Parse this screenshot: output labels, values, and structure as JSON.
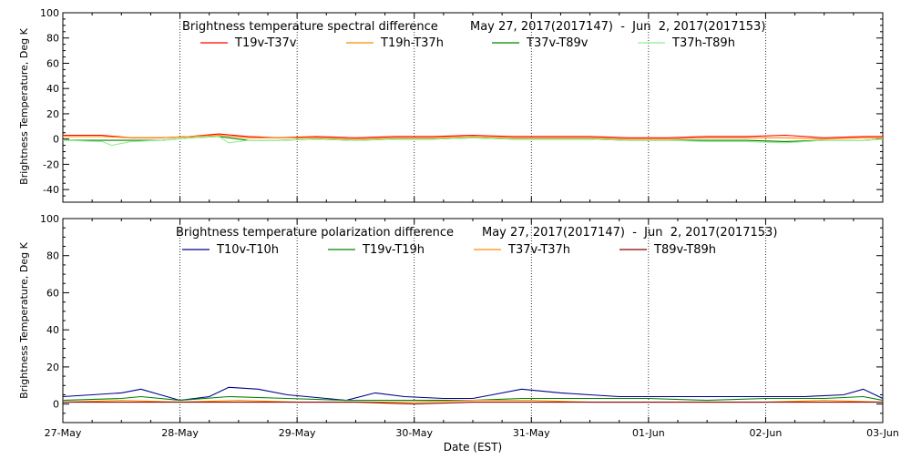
{
  "chart_data": [
    {
      "type": "line",
      "title": "Brightness temperature spectral difference",
      "subtitle": "May 27, 2017(2017147)  -  Jun  2, 2017(2017153)",
      "ylabel": "Brightness Temperature, Deg K",
      "xlabel": "",
      "ylim": [
        -50,
        100
      ],
      "yticks": [
        -40,
        -20,
        0,
        20,
        40,
        60,
        80,
        100
      ],
      "xlim": [
        "2017-05-27",
        "2017-06-03"
      ],
      "grid": "vertical dotted at day boundaries",
      "legend_position": "top",
      "series": [
        {
          "name": "T19v-T37v",
          "color": "#ff0000",
          "x": [
            "2017-05-27T00",
            "2017-05-27T08",
            "2017-05-27T14",
            "2017-05-27T20",
            "2017-05-28T02",
            "2017-05-28T08",
            "2017-05-28T14",
            "2017-05-28T20",
            "2017-05-29T04",
            "2017-05-29T12",
            "2017-05-29T20",
            "2017-05-30T04",
            "2017-05-30T12",
            "2017-05-30T20",
            "2017-05-31T04",
            "2017-05-31T12",
            "2017-05-31T20",
            "2017-06-01T04",
            "2017-06-01T12",
            "2017-06-01T20",
            "2017-06-02T04",
            "2017-06-02T12",
            "2017-06-02T20",
            "2017-06-03T00"
          ],
          "y": [
            3,
            3,
            1,
            1,
            2,
            4,
            2,
            1,
            2,
            1,
            2,
            2,
            3,
            2,
            2,
            2,
            1,
            1,
            2,
            2,
            3,
            1,
            2,
            2
          ]
        },
        {
          "name": "T19h-T37h",
          "color": "#ff8c00",
          "x": [
            "2017-05-27T00",
            "2017-05-27T08",
            "2017-05-27T14",
            "2017-05-27T20",
            "2017-05-28T02",
            "2017-05-28T08",
            "2017-05-28T14",
            "2017-05-28T20",
            "2017-05-29T04",
            "2017-05-29T12",
            "2017-05-29T20",
            "2017-05-30T04",
            "2017-05-30T12",
            "2017-05-30T20",
            "2017-05-31T04",
            "2017-05-31T12",
            "2017-05-31T20",
            "2017-06-01T04",
            "2017-06-01T12",
            "2017-06-01T20",
            "2017-06-02T04",
            "2017-06-02T12",
            "2017-06-02T20",
            "2017-06-03T00"
          ],
          "y": [
            2,
            2,
            1,
            1,
            2,
            3,
            1,
            1,
            1,
            0,
            1,
            1,
            2,
            1,
            1,
            1,
            0,
            0,
            1,
            1,
            1,
            0,
            1,
            1
          ]
        },
        {
          "name": "T37v-T89v",
          "color": "#008000",
          "x": [
            "2017-05-27T00",
            "2017-05-27T08",
            "2017-05-27T14",
            "2017-05-27T20",
            "2017-05-28T02",
            "2017-05-28T08",
            "2017-05-28T14",
            "2017-05-28T20",
            "2017-05-29T04",
            "2017-05-29T12",
            "2017-05-29T20",
            "2017-05-30T04",
            "2017-05-30T12",
            "2017-05-30T20",
            "2017-05-31T04",
            "2017-05-31T12",
            "2017-05-31T20",
            "2017-06-01T04",
            "2017-06-01T12",
            "2017-06-01T20",
            "2017-06-02T04",
            "2017-06-02T12",
            "2017-06-02T20",
            "2017-06-03T00"
          ],
          "y": [
            -1,
            -1,
            -1,
            -1,
            1,
            2,
            -1,
            -1,
            0,
            -1,
            0,
            0,
            1,
            0,
            0,
            0,
            -1,
            -1,
            -1,
            -1,
            -2,
            -1,
            -1,
            0
          ]
        },
        {
          "name": "T37h-T89h",
          "color": "#90ee90",
          "x": [
            "2017-05-27T00",
            "2017-05-27T08",
            "2017-05-27T10",
            "2017-05-27T14",
            "2017-05-27T20",
            "2017-05-28T02",
            "2017-05-28T08",
            "2017-05-28T10",
            "2017-05-28T14",
            "2017-05-28T20",
            "2017-05-29T04",
            "2017-05-29T12",
            "2017-05-29T20",
            "2017-05-30T04",
            "2017-05-30T12",
            "2017-05-30T20",
            "2017-05-31T04",
            "2017-05-31T12",
            "2017-05-31T20",
            "2017-06-01T04",
            "2017-06-01T12",
            "2017-06-01T20",
            "2017-06-02T04",
            "2017-06-02T12",
            "2017-06-02T20",
            "2017-06-03T00"
          ],
          "y": [
            -1,
            -2,
            -5,
            -2,
            -1,
            1,
            2,
            -3,
            -1,
            -1,
            0,
            -1,
            0,
            0,
            1,
            0,
            0,
            0,
            -1,
            -1,
            -2,
            -2,
            -3,
            -1,
            -1,
            0
          ]
        }
      ]
    },
    {
      "type": "line",
      "title": "Brightness temperature polarization difference",
      "subtitle": "May 27, 2017(2017147)  -  Jun  2, 2017(2017153)",
      "ylabel": "Brightness Temperature, Deg K",
      "xlabel": "Date (EST)",
      "ylim": [
        -10,
        100
      ],
      "yticks": [
        0,
        20,
        40,
        60,
        80,
        100
      ],
      "xlim": [
        "2017-05-27",
        "2017-06-03"
      ],
      "xticks": [
        "27-May",
        "28-May",
        "29-May",
        "30-May",
        "31-May",
        "01-Jun",
        "02-Jun",
        "03-Jun"
      ],
      "grid": "vertical dotted at day boundaries",
      "legend_position": "top",
      "series": [
        {
          "name": "T10v-T10h",
          "color": "#00008b",
          "x": [
            "2017-05-27T00",
            "2017-05-27T06",
            "2017-05-27T12",
            "2017-05-27T16",
            "2017-05-27T20",
            "2017-05-28T00",
            "2017-05-28T06",
            "2017-05-28T10",
            "2017-05-28T16",
            "2017-05-28T22",
            "2017-05-29T06",
            "2017-05-29T10",
            "2017-05-29T16",
            "2017-05-29T22",
            "2017-05-30T06",
            "2017-05-30T12",
            "2017-05-30T16",
            "2017-05-30T22",
            "2017-05-31T06",
            "2017-05-31T12",
            "2017-05-31T18",
            "2017-06-01T00",
            "2017-06-01T08",
            "2017-06-01T16",
            "2017-06-02T00",
            "2017-06-02T08",
            "2017-06-02T16",
            "2017-06-02T20",
            "2017-06-03T00"
          ],
          "y": [
            4,
            5,
            6,
            8,
            5,
            2,
            4,
            9,
            8,
            5,
            3,
            2,
            6,
            4,
            3,
            3,
            5,
            8,
            6,
            5,
            4,
            4,
            4,
            4,
            4,
            4,
            5,
            8,
            3
          ]
        },
        {
          "name": "T19v-T19h",
          "color": "#008000",
          "x": [
            "2017-05-27T00",
            "2017-05-27T12",
            "2017-05-27T16",
            "2017-05-28T00",
            "2017-05-28T10",
            "2017-05-28T22",
            "2017-05-29T10",
            "2017-05-29T22",
            "2017-05-30T12",
            "2017-05-30T22",
            "2017-05-31T12",
            "2017-06-01T00",
            "2017-06-01T12",
            "2017-06-02T00",
            "2017-06-02T12",
            "2017-06-02T20",
            "2017-06-03T00"
          ],
          "y": [
            2,
            3,
            4,
            2,
            4,
            3,
            2,
            2,
            2,
            3,
            3,
            3,
            2,
            3,
            3,
            4,
            2
          ]
        },
        {
          "name": "T37v-T37h",
          "color": "#ff8c00",
          "x": [
            "2017-05-27T00",
            "2017-05-27T12",
            "2017-05-28T00",
            "2017-05-28T12",
            "2017-05-29T00",
            "2017-05-29T12",
            "2017-05-30T00",
            "2017-05-30T12",
            "2017-05-31T00",
            "2017-05-31T12",
            "2017-06-01T00",
            "2017-06-01T12",
            "2017-06-02T00",
            "2017-06-02T12",
            "2017-06-03T00"
          ],
          "y": [
            1,
            2,
            1,
            2,
            1,
            1,
            1,
            2,
            2,
            1,
            1,
            1,
            1,
            2,
            1
          ]
        },
        {
          "name": "T89v-T89h",
          "color": "#8b0000",
          "x": [
            "2017-05-27T00",
            "2017-05-27T12",
            "2017-05-28T00",
            "2017-05-28T12",
            "2017-05-29T00",
            "2017-05-29T12",
            "2017-05-30T00",
            "2017-05-30T12",
            "2017-05-31T00",
            "2017-05-31T12",
            "2017-06-01T00",
            "2017-06-01T12",
            "2017-06-02T00",
            "2017-06-02T12",
            "2017-06-03T00"
          ],
          "y": [
            1,
            1,
            1,
            1,
            1,
            1,
            0,
            1,
            1,
            1,
            1,
            1,
            1,
            1,
            1
          ]
        }
      ]
    }
  ]
}
